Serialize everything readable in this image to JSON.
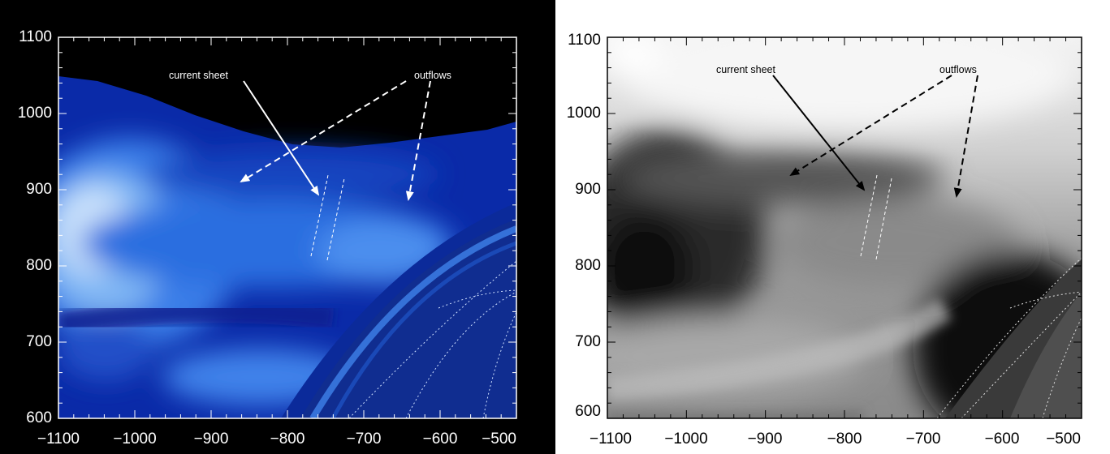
{
  "panels": [
    {
      "id": "left",
      "colormap": "blue",
      "x_ticks": [
        "−1100",
        "−1000",
        "−900",
        "−800",
        "−700",
        "−600",
        "−500"
      ],
      "y_ticks": [
        "600",
        "700",
        "800",
        "900",
        "1000",
        "1100"
      ],
      "annotations": {
        "current_sheet": "current sheet",
        "outflows": "outflows"
      },
      "colors": {
        "background": "#000000",
        "axis": "#ffffff",
        "annotation": "#ffffff"
      }
    },
    {
      "id": "right",
      "colormap": "grayscale",
      "x_ticks": [
        "−1100",
        "−1000",
        "−900",
        "−800",
        "−700",
        "−600",
        "−500"
      ],
      "y_ticks": [
        "600",
        "700",
        "800",
        "900",
        "1000",
        "1100"
      ],
      "annotations": {
        "current_sheet": "current sheet",
        "outflows": "outflows"
      },
      "colors": {
        "background": "#ffffff",
        "axis": "#000000",
        "annotation": "#000000"
      }
    }
  ]
}
